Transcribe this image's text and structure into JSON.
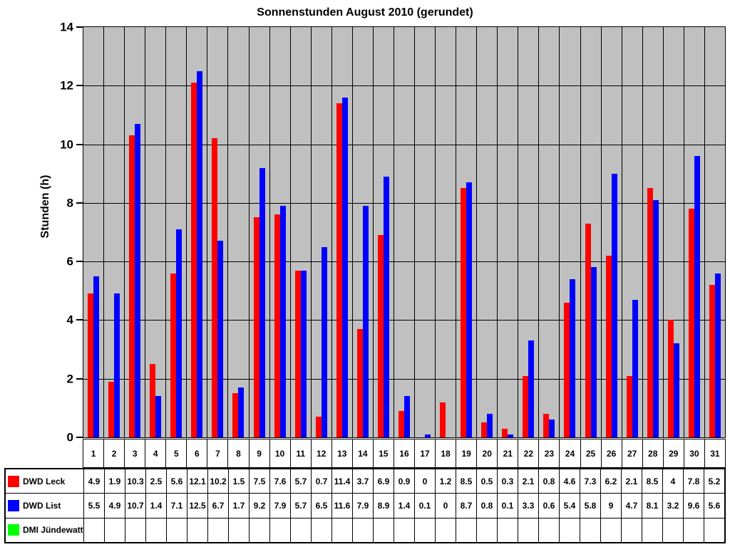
{
  "chart_data": {
    "type": "bar",
    "title": "Sonnenstunden August 2010 (gerundet)",
    "ylabel": "Stunden (h)",
    "xlabel": "",
    "ylim": [
      0,
      14
    ],
    "ytick_step": 2,
    "yticks": [
      0,
      2,
      4,
      6,
      8,
      10,
      12,
      14
    ],
    "grid": true,
    "grid_color": "#000000",
    "plot_bg": "#C0C0C0",
    "legend_position": "bottom-table",
    "categories": [
      1,
      2,
      3,
      4,
      5,
      6,
      7,
      8,
      9,
      10,
      11,
      12,
      13,
      14,
      15,
      16,
      17,
      18,
      19,
      20,
      21,
      22,
      23,
      24,
      25,
      26,
      27,
      28,
      29,
      30,
      31
    ],
    "series": [
      {
        "name": "DWD Leck",
        "color": "#FF0000",
        "values": [
          4.9,
          1.9,
          10.3,
          2.5,
          5.6,
          12.1,
          10.2,
          1.5,
          7.5,
          7.6,
          5.7,
          0.7,
          11.4,
          3.7,
          6.9,
          0.9,
          0,
          1.2,
          8.5,
          0.5,
          0.3,
          2.1,
          0.8,
          4.6,
          7.3,
          6.2,
          2.1,
          8.5,
          4,
          7.8,
          5.2
        ]
      },
      {
        "name": "DWD List",
        "color": "#0000FF",
        "values": [
          5.5,
          4.9,
          10.7,
          1.4,
          7.1,
          12.5,
          6.7,
          1.7,
          9.2,
          7.9,
          5.7,
          6.5,
          11.6,
          7.9,
          8.9,
          1.4,
          0.1,
          0,
          8.7,
          0.8,
          0.1,
          3.3,
          0.6,
          5.4,
          5.8,
          9,
          4.7,
          8.1,
          3.2,
          9.6,
          5.6
        ]
      },
      {
        "name": "DMI Jündewatt",
        "color": "#00FF00",
        "values": []
      }
    ]
  }
}
